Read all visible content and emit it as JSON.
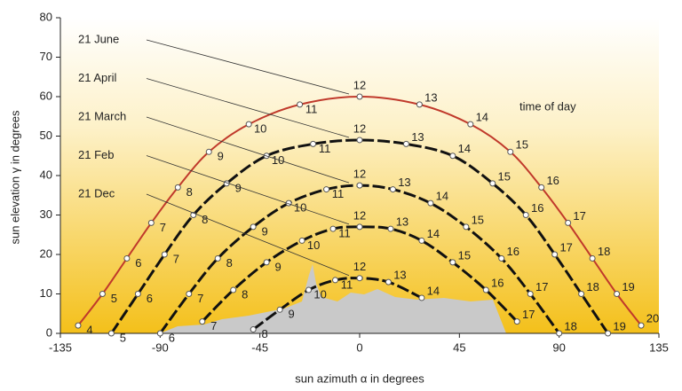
{
  "chart_data": {
    "type": "line",
    "xlabel": "sun azimuth α in degrees",
    "ylabel": "sun elevation γ in degrees",
    "annotation": "time of day",
    "xlim": [
      -135,
      135
    ],
    "xticks": [
      -135,
      -90,
      -45,
      0,
      45,
      90,
      135
    ],
    "ylim": [
      0,
      80
    ],
    "yticks": [
      0,
      10,
      20,
      30,
      40,
      50,
      60,
      70,
      80
    ],
    "series": [
      {
        "name": "21 June",
        "color": "#c0392b",
        "dashed": false,
        "hours": [
          4,
          5,
          6,
          7,
          8,
          9,
          10,
          11,
          12,
          13,
          14,
          15,
          16,
          17,
          18,
          19,
          20
        ],
        "x": [
          -127,
          -116,
          -105,
          -94,
          -82,
          -68,
          -50,
          -27,
          0,
          27,
          50,
          68,
          82,
          94,
          105,
          116,
          127
        ],
        "values": [
          2,
          10,
          19,
          28,
          37,
          46,
          53,
          58,
          60,
          58,
          53,
          46,
          37,
          28,
          19,
          10,
          2
        ]
      },
      {
        "name": "21 April",
        "color": "#111111",
        "dashed": true,
        "hours": [
          5,
          6,
          7,
          8,
          9,
          10,
          11,
          12,
          13,
          14,
          15,
          16,
          17,
          18,
          19
        ],
        "x": [
          -112,
          -100,
          -88,
          -75,
          -60,
          -42,
          -21,
          0,
          21,
          42,
          60,
          75,
          88,
          100,
          112
        ],
        "values": [
          0,
          10,
          20,
          30,
          38,
          45,
          48,
          49,
          48,
          45,
          38,
          30,
          20,
          10,
          0
        ]
      },
      {
        "name": "21 March",
        "color": "#111111",
        "dashed": true,
        "hours": [
          6,
          7,
          8,
          9,
          10,
          11,
          12,
          13,
          14,
          15,
          16,
          17,
          18
        ],
        "x": [
          -90,
          -77,
          -64,
          -48,
          -32,
          -15,
          0,
          15,
          32,
          48,
          64,
          77,
          90
        ],
        "values": [
          0,
          10,
          19,
          27,
          33,
          36.5,
          37.5,
          36.5,
          33,
          27,
          19,
          10,
          0
        ]
      },
      {
        "name": "21 Feb",
        "color": "#111111",
        "dashed": true,
        "hours": [
          7,
          8,
          9,
          10,
          11,
          12,
          13,
          14,
          15,
          16,
          17
        ],
        "x": [
          -71,
          -57,
          -42,
          -26,
          -12,
          0,
          14,
          28,
          42,
          57,
          71
        ],
        "values": [
          3,
          11,
          18,
          23.5,
          26.5,
          27,
          26.5,
          23.5,
          18,
          11,
          3
        ]
      },
      {
        "name": "21 Dec",
        "color": "#111111",
        "dashed": true,
        "hours": [
          8,
          9,
          10,
          11,
          12,
          13,
          14
        ],
        "x": [
          -48,
          -36,
          -23,
          -11,
          0,
          13,
          28
        ],
        "values": [
          1,
          6,
          11,
          13.5,
          14,
          13,
          9
        ]
      }
    ]
  }
}
